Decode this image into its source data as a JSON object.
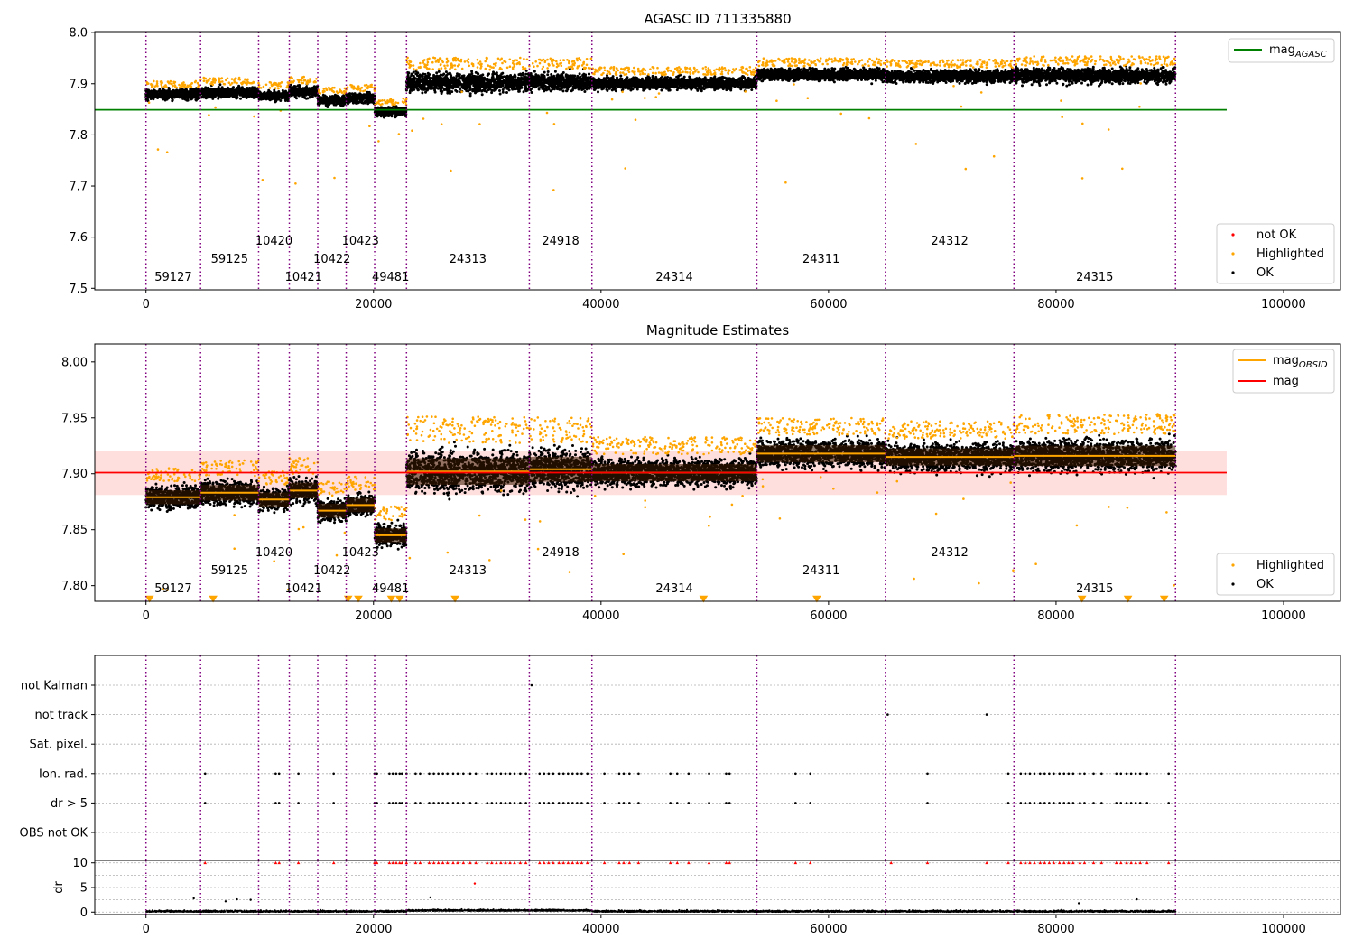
{
  "chart_data": [
    {
      "type": "scatter",
      "title": "AGASC ID 711335880",
      "xlabel": "",
      "ylabel": "",
      "xlim": [
        -4500,
        105000
      ],
      "ylim": [
        7.497,
        8.002
      ],
      "xticks": [
        "0",
        "20000",
        "40000",
        "60000",
        "80000",
        "100000"
      ],
      "yticks": [
        "7.5",
        "7.6",
        "7.7",
        "7.8",
        "7.9",
        "8.0"
      ],
      "grid": false,
      "reference_line": {
        "name": "mag",
        "subscript": "AGASC",
        "y": 7.849,
        "x_range": [
          -4500,
          95000
        ],
        "color": "#008000"
      },
      "legend_lines": {
        "position": "top-right",
        "entries": [
          {
            "label": "mag",
            "subscript": "AGASC",
            "color": "#008000"
          }
        ]
      },
      "legend_points": {
        "position": "bottom-right",
        "entries": [
          {
            "label": "not OK",
            "color": "#ff0000"
          },
          {
            "label": "Highlighted",
            "color": "#ffa500"
          },
          {
            "label": "OK",
            "color": "#000000"
          }
        ]
      },
      "observations": [
        {
          "obsid": "59127",
          "x_start": 0,
          "x_end": 4800,
          "mag": 7.879,
          "spread": 0.009,
          "label_row": 0
        },
        {
          "obsid": "59125",
          "x_start": 4800,
          "x_end": 9900,
          "mag": 7.883,
          "spread": 0.01,
          "label_row": 1
        },
        {
          "obsid": "10420",
          "x_start": 9900,
          "x_end": 12600,
          "mag": 7.877,
          "spread": 0.009,
          "label_row": 2
        },
        {
          "obsid": "10421",
          "x_start": 12600,
          "x_end": 15100,
          "mag": 7.885,
          "spread": 0.01,
          "label_row": 0
        },
        {
          "obsid": "10422",
          "x_start": 15100,
          "x_end": 17600,
          "mag": 7.867,
          "spread": 0.009,
          "label_row": 1
        },
        {
          "obsid": "10423",
          "x_start": 17600,
          "x_end": 20100,
          "mag": 7.872,
          "spread": 0.009,
          "label_row": 2
        },
        {
          "obsid": "49481",
          "x_start": 20100,
          "x_end": 22900,
          "mag": 7.845,
          "spread": 0.009,
          "label_row": 0
        },
        {
          "obsid": "24313",
          "x_start": 22900,
          "x_end": 33700,
          "mag": 7.902,
          "spread": 0.017,
          "label_row": 1
        },
        {
          "obsid": "24918",
          "x_start": 33700,
          "x_end": 39200,
          "mag": 7.904,
          "spread": 0.016,
          "label_row": 2
        },
        {
          "obsid": "24314",
          "x_start": 39200,
          "x_end": 53700,
          "mag": 7.901,
          "spread": 0.011,
          "label_row": 0
        },
        {
          "obsid": "24311",
          "x_start": 53700,
          "x_end": 65000,
          "mag": 7.918,
          "spread": 0.011,
          "label_row": 1
        },
        {
          "obsid": "24312",
          "x_start": 65000,
          "x_end": 76300,
          "mag": 7.915,
          "spread": 0.011,
          "label_row": 2
        },
        {
          "obsid": "24315",
          "x_start": 76300,
          "x_end": 90500,
          "mag": 7.916,
          "spread": 0.013,
          "label_row": 0
        }
      ],
      "obs_boundaries": [
        0,
        4800,
        9900,
        12600,
        15100,
        17600,
        20100,
        22900,
        33700,
        39200,
        53700,
        65000,
        76300,
        90500
      ]
    },
    {
      "type": "scatter",
      "title": "Magnitude Estimates",
      "xlabel": "",
      "ylabel": "",
      "xlim": [
        -4500,
        105000
      ],
      "ylim": [
        7.786,
        8.016
      ],
      "xticks": [
        "0",
        "20000",
        "40000",
        "60000",
        "80000",
        "100000"
      ],
      "yticks": [
        "7.80",
        "7.85",
        "7.90",
        "7.95",
        "8.00"
      ],
      "grid": false,
      "overall_mag": {
        "name": "mag",
        "y": 7.901,
        "band": [
          7.881,
          7.92
        ],
        "x_range": [
          -4500,
          95000
        ],
        "color": "#ff0000"
      },
      "obsid_mag_series": {
        "name": "mag",
        "subscript": "OBSID",
        "color": "#ffa500"
      },
      "legend_lines": {
        "position": "top-right",
        "entries": [
          {
            "label": "mag",
            "subscript": "OBSID",
            "color": "#ffa500"
          },
          {
            "label": "mag",
            "subscript": "",
            "color": "#ff0000"
          }
        ]
      },
      "legend_points": {
        "position": "bottom-right",
        "entries": [
          {
            "label": "Highlighted",
            "color": "#ffa500"
          },
          {
            "label": "OK",
            "color": "#000000"
          }
        ]
      }
    },
    {
      "type": "scatter",
      "title": "",
      "xlabel": "",
      "ylabel": "",
      "xlim": [
        -4500,
        105000
      ],
      "xticks": [
        "0",
        "20000",
        "40000",
        "60000",
        "80000",
        "100000"
      ],
      "flag_categories": [
        "not Kalman",
        "not track",
        "Sat. pixel.",
        "Ion. rad.",
        "dr > 5",
        "OBS not OK"
      ],
      "flag_points": {
        "not Kalman": [
          33900
        ],
        "not track": [
          65200,
          73900
        ],
        "Sat. pixel.": [],
        "Ion. rad.": [
          5200,
          11400,
          11700,
          13400,
          16500,
          20100,
          20300,
          21400,
          21700,
          22000,
          22300,
          22500,
          22900,
          23700,
          24100,
          24900,
          25300,
          25700,
          26100,
          26500,
          27000,
          27400,
          27900,
          28500,
          29000,
          30000,
          30400,
          30800,
          31200,
          31600,
          32000,
          32400,
          32900,
          33400,
          34600,
          35000,
          35400,
          35800,
          36300,
          36700,
          37100,
          37500,
          37900,
          38300,
          38800,
          40300,
          41600,
          42000,
          42500,
          43300,
          46100,
          46700,
          47700,
          49500,
          51000,
          51300,
          57100,
          58400,
          68700,
          75800,
          76900,
          77300,
          77700,
          78100,
          78600,
          79000,
          79400,
          79800,
          80300,
          80700,
          81100,
          81500,
          82100,
          82500,
          83300,
          84000,
          85300,
          85700,
          86200,
          86600,
          87000,
          87400,
          88000,
          89900
        ],
        "dr > 5": [
          5200,
          11400,
          11700,
          13400,
          16500,
          20100,
          20300,
          21400,
          21700,
          22000,
          22300,
          22500,
          22900,
          23700,
          24100,
          24900,
          25300,
          25700,
          26100,
          26500,
          27000,
          27400,
          27900,
          28500,
          29000,
          30000,
          30400,
          30800,
          31200,
          31600,
          32000,
          32400,
          32900,
          33400,
          34600,
          35000,
          35400,
          35800,
          36300,
          36700,
          37100,
          37500,
          37900,
          38300,
          38800,
          40300,
          41600,
          42000,
          42500,
          43300,
          46100,
          46700,
          47700,
          49500,
          51000,
          51300,
          57100,
          58400,
          68700,
          75800,
          76900,
          77300,
          77700,
          78100,
          78600,
          79000,
          79400,
          79800,
          80300,
          80700,
          81100,
          81500,
          82100,
          82500,
          83300,
          84000,
          85300,
          85700,
          86200,
          86600,
          87000,
          87400,
          88000,
          89900
        ],
        "OBS not OK": []
      }
    },
    {
      "type": "scatter",
      "title": "",
      "xlabel": "",
      "ylabel": "dr",
      "xlim": [
        -4500,
        105000
      ],
      "ylim": [
        -0.5,
        10.5
      ],
      "yticks": [
        "0",
        "5",
        "10"
      ],
      "grid": true,
      "clipped_value": 10,
      "clipped_x": [
        5200,
        11400,
        11700,
        13400,
        16500,
        20100,
        20300,
        21400,
        21700,
        22000,
        22300,
        22500,
        22900,
        23700,
        24100,
        24900,
        25300,
        25700,
        26100,
        26500,
        27000,
        27400,
        27900,
        28500,
        29000,
        30000,
        30400,
        30800,
        31200,
        31600,
        32000,
        32400,
        32900,
        33400,
        34600,
        35000,
        35400,
        35800,
        36300,
        36700,
        37100,
        37500,
        37900,
        38300,
        38800,
        40300,
        41600,
        42000,
        42500,
        43300,
        46100,
        46700,
        47700,
        49500,
        51000,
        51300,
        57100,
        58400,
        65500,
        68700,
        73900,
        75800,
        76900,
        77300,
        77700,
        78100,
        78600,
        79000,
        79400,
        79800,
        80300,
        80700,
        81100,
        81500,
        82100,
        82500,
        83300,
        84000,
        85300,
        85700,
        86200,
        86600,
        87000,
        87400,
        88000,
        89900
      ],
      "outliers": [
        [
          4200,
          2.8
        ],
        [
          7000,
          2.2
        ],
        [
          8000,
          2.6
        ],
        [
          9200,
          2.5
        ],
        [
          25000,
          3.0
        ],
        [
          28900,
          5.8
        ],
        [
          82000,
          1.8
        ],
        [
          87100,
          2.6
        ]
      ]
    }
  ]
}
